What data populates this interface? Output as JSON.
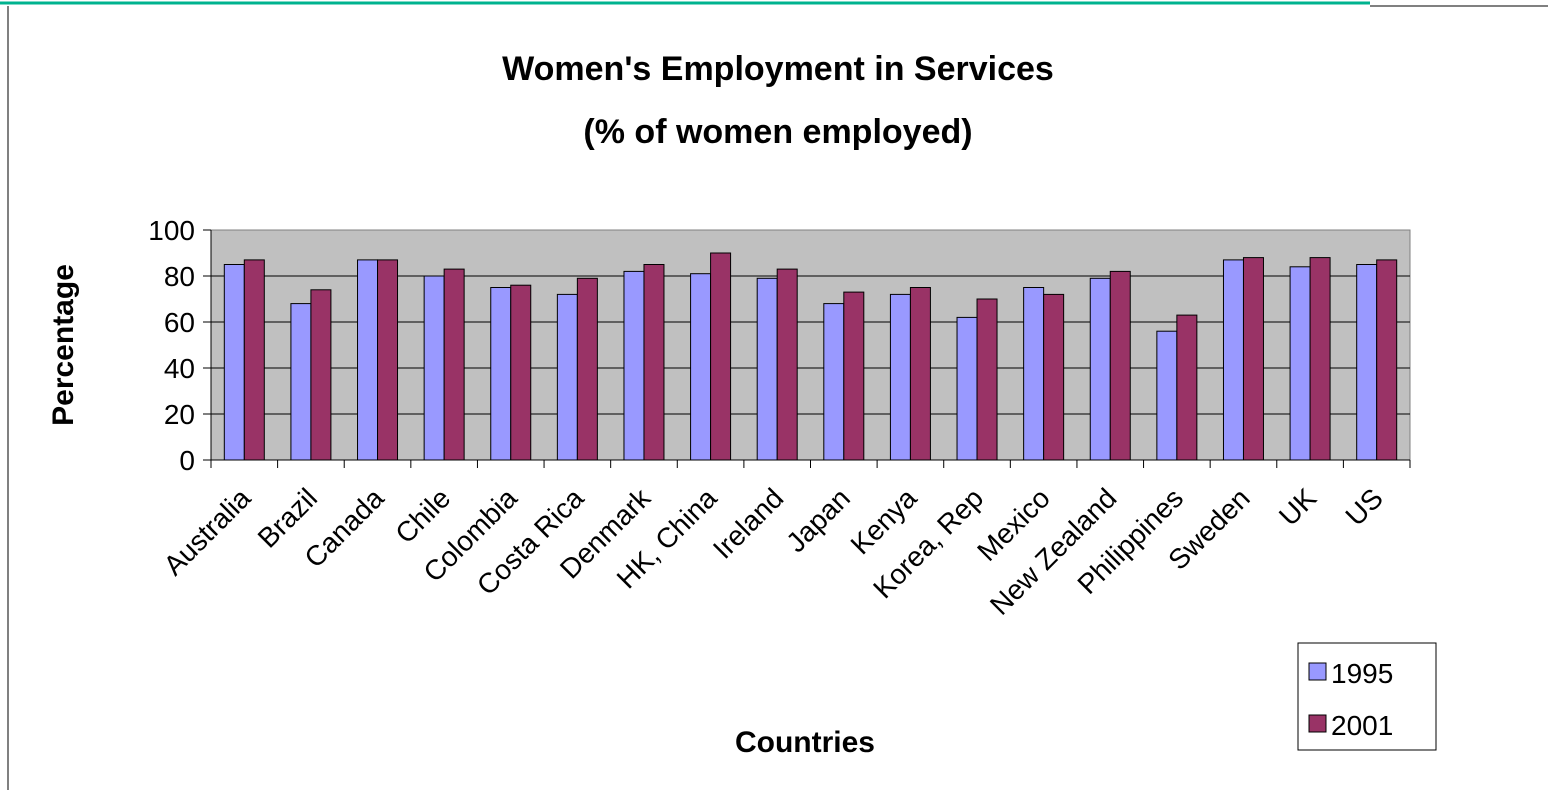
{
  "colors": {
    "top_line": "#00b38f",
    "plot_bg": "#c0c0c0",
    "series_1995": "#9999ff",
    "series_2001": "#993366"
  },
  "chart_data": {
    "type": "bar",
    "title": [
      "Women's Employment in Services",
      "(% of women employed)"
    ],
    "xlabel": "Countries",
    "ylabel": "Percentage",
    "ylim": [
      0,
      100
    ],
    "yticks": [
      0,
      20,
      40,
      60,
      80,
      100
    ],
    "grid": true,
    "legend": "bottom-right",
    "categories": [
      "Australia",
      "Brazil",
      "Canada",
      "Chile",
      "Colombia",
      "Costa Rica",
      "Denmark",
      "HK, China",
      "Ireland",
      "Japan",
      "Kenya",
      "Korea, Rep",
      "Mexico",
      "New Zealand",
      "Philippines",
      "Sweden",
      "UK",
      "US"
    ],
    "series": [
      {
        "name": "1995",
        "values": [
          85,
          68,
          87,
          80,
          75,
          72,
          82,
          81,
          79,
          68,
          72,
          62,
          75,
          79,
          56,
          87,
          84,
          85
        ]
      },
      {
        "name": "2001",
        "values": [
          87,
          74,
          87,
          83,
          76,
          79,
          85,
          90,
          83,
          73,
          75,
          70,
          72,
          82,
          63,
          88,
          88,
          87
        ]
      }
    ]
  }
}
